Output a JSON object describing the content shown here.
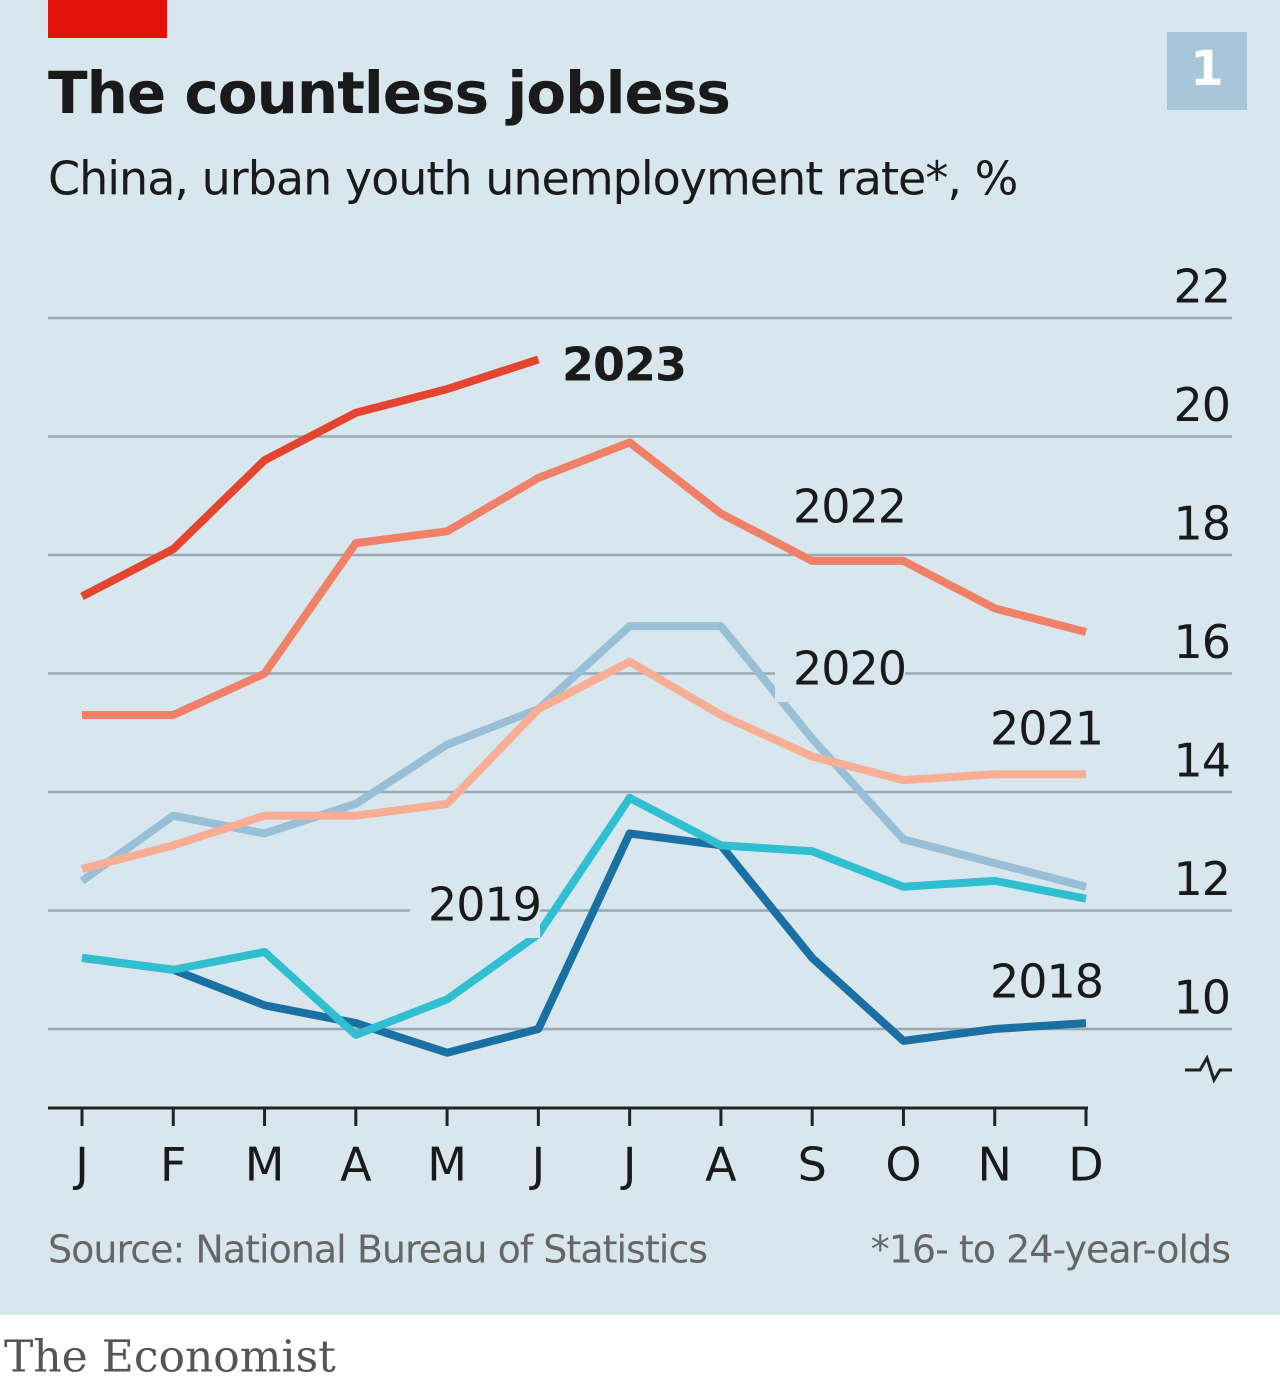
{
  "chart_data": {
    "type": "line",
    "title": "The countless jobless",
    "subtitle": "China, urban youth unemployment rate*, %",
    "badge": "1",
    "source": "Source: National Bureau of Statistics",
    "note": "*16- to 24-year-olds",
    "brand": "The Economist",
    "categories": [
      "J",
      "F",
      "M",
      "A",
      "M",
      "J",
      "J",
      "A",
      "S",
      "O",
      "N",
      "D"
    ],
    "ylim": [
      8.6,
      22
    ],
    "yticks": [
      10,
      12,
      14,
      16,
      18,
      20,
      22
    ],
    "grid": true,
    "series": [
      {
        "name": "2018",
        "color": "#1a6fa3",
        "values": [
          11.2,
          11.0,
          10.4,
          10.1,
          9.6,
          10.0,
          13.3,
          13.1,
          11.2,
          9.8,
          10.0,
          10.1
        ]
      },
      {
        "name": "2019",
        "color": "#2fbfd0",
        "values": [
          11.2,
          11.0,
          11.3,
          9.9,
          10.5,
          11.6,
          13.9,
          13.1,
          13.0,
          12.4,
          12.5,
          12.2
        ]
      },
      {
        "name": "2020",
        "color": "#98bfd6",
        "values": [
          12.5,
          13.6,
          13.3,
          13.8,
          14.8,
          15.4,
          16.8,
          16.8,
          14.9,
          13.2,
          12.8,
          12.4
        ]
      },
      {
        "name": "2021",
        "color": "#f8ad95",
        "values": [
          12.7,
          13.1,
          13.6,
          13.6,
          13.8,
          15.4,
          16.2,
          15.3,
          14.6,
          14.2,
          14.3,
          14.3
        ]
      },
      {
        "name": "2022",
        "color": "#f08168",
        "values": [
          15.3,
          15.3,
          16.0,
          18.2,
          18.4,
          19.3,
          19.9,
          18.7,
          17.9,
          17.9,
          17.1,
          16.7
        ]
      },
      {
        "name": "2023",
        "color": "#e3452f",
        "values": [
          17.3,
          18.1,
          19.6,
          20.4,
          20.8,
          21.3,
          null,
          null,
          null,
          null,
          null,
          null
        ]
      }
    ]
  }
}
